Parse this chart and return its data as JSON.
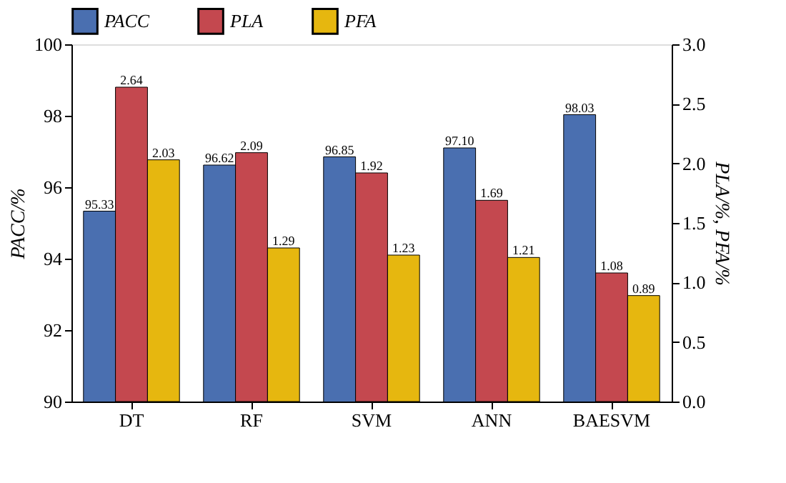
{
  "chart_data": {
    "type": "bar",
    "categories": [
      "DT",
      "RF",
      "SVM",
      "ANN",
      "BAESVM"
    ],
    "ylabel": "PACC/%",
    "y2label": "PLA/%, PFA/%",
    "ylim": [
      90,
      100
    ],
    "yticks": [
      90,
      92,
      94,
      96,
      98,
      100
    ],
    "y2lim": [
      0,
      3
    ],
    "y2ticks": [
      {
        "value": 0,
        "label": "0.0"
      },
      {
        "value": 0.5,
        "label": "0.5"
      },
      {
        "value": 1,
        "label": "1.0"
      },
      {
        "value": 1.5,
        "label": "1.5"
      },
      {
        "value": 2,
        "label": "2.0"
      },
      {
        "value": 2.5,
        "label": "2.5"
      },
      {
        "value": 3,
        "label": "3.0"
      }
    ],
    "series": [
      {
        "name": "PACC",
        "color": "#4a6fb0",
        "values": [
          95.33,
          96.62,
          96.85,
          97.1,
          98.03
        ],
        "value_labels": [
          "95.33",
          "96.62",
          "96.85",
          "97.10",
          "98.03"
        ]
      },
      {
        "name": "PLA",
        "color": "#c4484f",
        "axis": "y2",
        "values": [
          2.64,
          2.09,
          1.92,
          1.69,
          1.08
        ],
        "value_labels": [
          "2.64",
          "2.09",
          "1.92",
          "1.69",
          "1.08"
        ]
      },
      {
        "name": "PFA",
        "color": "#e6b70f",
        "axis": "y2",
        "values": [
          2.03,
          1.29,
          1.23,
          1.21,
          0.89
        ],
        "value_labels": [
          "2.03",
          "1.29",
          "1.23",
          "1.21",
          "0.89"
        ]
      }
    ],
    "legend": "top",
    "grid": false
  }
}
